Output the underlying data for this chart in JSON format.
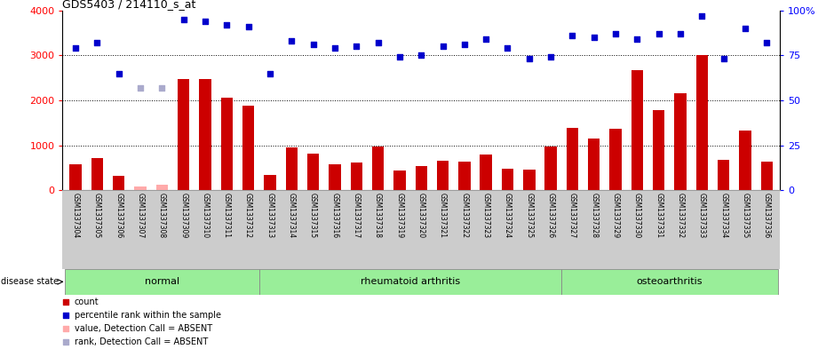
{
  "title": "GDS5403 / 214110_s_at",
  "samples": [
    "GSM1337304",
    "GSM1337305",
    "GSM1337306",
    "GSM1337307",
    "GSM1337308",
    "GSM1337309",
    "GSM1337310",
    "GSM1337311",
    "GSM1337312",
    "GSM1337313",
    "GSM1337314",
    "GSM1337315",
    "GSM1337316",
    "GSM1337317",
    "GSM1337318",
    "GSM1337319",
    "GSM1337320",
    "GSM1337321",
    "GSM1337322",
    "GSM1337323",
    "GSM1337324",
    "GSM1337325",
    "GSM1337326",
    "GSM1337327",
    "GSM1337328",
    "GSM1337329",
    "GSM1337330",
    "GSM1337331",
    "GSM1337332",
    "GSM1337333",
    "GSM1337334",
    "GSM1337335",
    "GSM1337336"
  ],
  "counts": [
    580,
    720,
    310,
    80,
    130,
    2480,
    2470,
    2060,
    1880,
    340,
    960,
    820,
    580,
    620,
    970,
    430,
    530,
    650,
    640,
    800,
    480,
    450,
    970,
    1380,
    1150,
    1360,
    2680,
    1780,
    2160,
    3010,
    680,
    1330,
    640
  ],
  "absent_count_indices": [
    3,
    4
  ],
  "percentile_ranks": [
    79,
    82,
    65,
    57,
    57,
    95,
    94,
    92,
    91,
    65,
    83,
    81,
    79,
    80,
    82,
    74,
    75,
    80,
    81,
    84,
    79,
    73,
    74,
    86,
    85,
    87,
    84,
    87,
    87,
    97,
    73,
    90,
    82
  ],
  "absent_rank_indices": [
    3,
    4
  ],
  "groups": [
    {
      "label": "normal",
      "start": 0,
      "end": 9
    },
    {
      "label": "rheumatoid arthritis",
      "start": 9,
      "end": 23
    },
    {
      "label": "osteoarthritis",
      "start": 23,
      "end": 33
    }
  ],
  "bar_color": "#cc0000",
  "absent_bar_color": "#ffaaaa",
  "scatter_color": "#0000cc",
  "absent_scatter_color": "#aaaacc",
  "left_ylim": [
    0,
    4000
  ],
  "right_ylim": [
    0,
    100
  ],
  "left_yticks": [
    0,
    1000,
    2000,
    3000,
    4000
  ],
  "right_yticks": [
    0,
    25,
    50,
    75,
    100
  ],
  "grid_values": [
    1000,
    2000,
    3000
  ],
  "group_color": "#99ee99",
  "tick_bg_color": "#cccccc",
  "legend_items": [
    {
      "label": "count",
      "color": "#cc0000"
    },
    {
      "label": "percentile rank within the sample",
      "color": "#0000cc"
    },
    {
      "label": "value, Detection Call = ABSENT",
      "color": "#ffaaaa"
    },
    {
      "label": "rank, Detection Call = ABSENT",
      "color": "#aaaacc"
    }
  ]
}
